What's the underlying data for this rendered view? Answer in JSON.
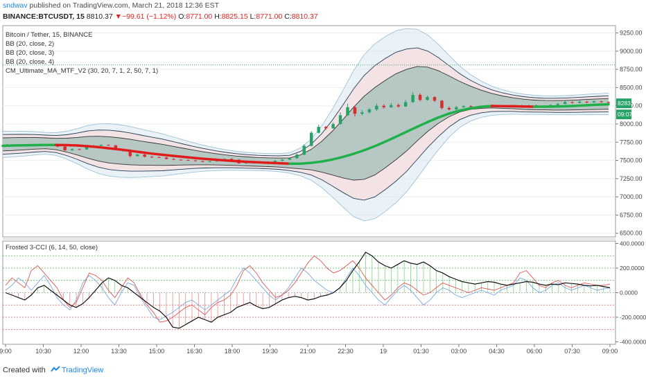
{
  "header": {
    "user": "sndwav",
    "published": "published on TradingView.com, March 21, 2018 12:36 EST",
    "symbol": "BINANCE:BTCUSDT, 15",
    "last": "8810.37",
    "change_arrow": "▼",
    "change": "−99.61 (−1.12%)",
    "o_label": "O:",
    "o": "8771.00",
    "h_label": "H:",
    "h": "8825.15",
    "l_label": "L:",
    "l": "8771.00",
    "c_label": "C:",
    "c": "8810.37"
  },
  "footer": {
    "created": "Created with",
    "brand": "TradingView"
  },
  "colors": {
    "up": "#26a269",
    "down": "#d32f2f",
    "ma_up": "#20b04a",
    "ma_down": "#e01b1b",
    "band_fill": "#2e8b7a",
    "band_outer": "#d8e8f0",
    "band_mid": "#f5dede",
    "cci_black": "#111111",
    "cci_red": "#e05555",
    "cci_blue": "#7aa7e0"
  },
  "chart_data": [
    {
      "type": "candlestick",
      "legend": [
        "Bitcoin / Tether, 15, BINANCE",
        "BB (20, close, 2)",
        "BB (20, close, 3)",
        "BB (20, close, 4)",
        "CM_Ultimate_MA_MTF_V2 (30, 20, 7, 1, 2, 50, 7, 1)"
      ],
      "yticks": [
        "9250.00",
        "9000.00",
        "8750.00",
        "8500.00",
        "8250.00",
        "8000.00",
        "7750.00",
        "7500.00",
        "7250.00",
        "7000.00",
        "6750.00",
        "6500.00"
      ],
      "ylim": [
        6450,
        9350
      ],
      "price_labels": [
        "8283.47",
        "09:07"
      ],
      "ref_line": 8810,
      "ma": [
        7700,
        7705,
        7708,
        7710,
        7712,
        7712,
        7710,
        7705,
        7695,
        7682,
        7666,
        7650,
        7632,
        7612,
        7594,
        7578,
        7563,
        7548,
        7534,
        7521,
        7510,
        7500,
        7490,
        7481,
        7474,
        7467,
        7461,
        7456,
        7456,
        7466,
        7484,
        7512,
        7548,
        7590,
        7640,
        7696,
        7758,
        7825,
        7894,
        7962,
        8028,
        8090,
        8143,
        8185,
        8215,
        8236,
        8247,
        8245,
        8243,
        8240,
        8238,
        8238,
        8240,
        8243,
        8250,
        8258,
        8265,
        8270
      ],
      "bb_mid": [
        7720,
        7725,
        7730,
        7735,
        7735,
        7725,
        7710,
        7695,
        7680,
        7662,
        7645,
        7630,
        7615,
        7600,
        7588,
        7576,
        7564,
        7552,
        7540,
        7528,
        7516,
        7505,
        7495,
        7486,
        7480,
        7475,
        7470,
        7465,
        7480,
        7510,
        7550,
        7600,
        7660,
        7730,
        7810,
        7900,
        8000,
        8100,
        8190,
        8280,
        8340,
        8370,
        8380,
        8375,
        8360,
        8340,
        8320,
        8300,
        8285,
        8270,
        8262,
        8258,
        8256,
        8258,
        8262,
        8268,
        8272,
        8276
      ],
      "bb_w2": [
        90,
        88,
        85,
        80,
        75,
        78,
        95,
        120,
        150,
        170,
        180,
        180,
        175,
        165,
        155,
        145,
        130,
        115,
        100,
        88,
        78,
        70,
        65,
        62,
        60,
        60,
        62,
        70,
        95,
        140,
        210,
        300,
        400,
        500,
        570,
        600,
        600,
        590,
        560,
        510,
        440,
        360,
        280,
        210,
        160,
        125,
        100,
        85,
        75,
        70,
        66,
        64,
        65,
        66,
        68,
        70,
        72,
        74
      ],
      "candles": [
        [
          7710,
          7705,
          7725,
          7690
        ],
        [
          7705,
          7700,
          7720,
          7690
        ],
        [
          7700,
          7702,
          7712,
          7690
        ],
        [
          7702,
          7720,
          7728,
          7698
        ],
        [
          7720,
          7718,
          7728,
          7710
        ],
        [
          7718,
          7722,
          7730,
          7712
        ],
        [
          7722,
          7705,
          7726,
          7700
        ],
        [
          7705,
          7690,
          7710,
          7682
        ],
        [
          7690,
          7640,
          7700,
          7630
        ],
        [
          7640,
          7655,
          7665,
          7635
        ],
        [
          7655,
          7650,
          7660,
          7642
        ],
        [
          7650,
          7690,
          7700,
          7645
        ],
        [
          7690,
          7700,
          7712,
          7685
        ],
        [
          7700,
          7712,
          7722,
          7695
        ],
        [
          7712,
          7708,
          7720,
          7700
        ],
        [
          7708,
          7655,
          7712,
          7650
        ],
        [
          7655,
          7640,
          7660,
          7620
        ],
        [
          7640,
          7560,
          7650,
          7540
        ],
        [
          7560,
          7580,
          7592,
          7552
        ],
        [
          7580,
          7550,
          7590,
          7540
        ],
        [
          7550,
          7545,
          7560,
          7535
        ],
        [
          7545,
          7540,
          7552,
          7532
        ],
        [
          7540,
          7520,
          7548,
          7515
        ],
        [
          7520,
          7510,
          7528,
          7505
        ],
        [
          7510,
          7505,
          7518,
          7500
        ],
        [
          7505,
          7500,
          7512,
          7495
        ],
        [
          7500,
          7490,
          7508,
          7485
        ],
        [
          7490,
          7480,
          7498,
          7475
        ],
        [
          7480,
          7488,
          7495,
          7475
        ],
        [
          7488,
          7500,
          7508,
          7482
        ],
        [
          7500,
          7520,
          7528,
          7495
        ],
        [
          7520,
          7510,
          7530,
          7505
        ],
        [
          7510,
          7460,
          7515,
          7455
        ],
        [
          7460,
          7470,
          7478,
          7452
        ],
        [
          7470,
          7465,
          7475,
          7458
        ],
        [
          7465,
          7470,
          7478,
          7460
        ],
        [
          7470,
          7480,
          7488,
          7465
        ],
        [
          7480,
          7495,
          7502,
          7475
        ],
        [
          7495,
          7510,
          7518,
          7490
        ],
        [
          7510,
          7530,
          7540,
          7505
        ],
        [
          7530,
          7580,
          7590,
          7525
        ],
        [
          7580,
          7700,
          7720,
          7570
        ],
        [
          7700,
          7880,
          7900,
          7690
        ],
        [
          7880,
          7960,
          7990,
          7870
        ],
        [
          7960,
          7940,
          7975,
          7920
        ],
        [
          7940,
          8000,
          8020,
          7935
        ],
        [
          8000,
          8120,
          8160,
          7990
        ],
        [
          8120,
          8230,
          8280,
          8110
        ],
        [
          8230,
          8140,
          8250,
          8100
        ],
        [
          8140,
          8160,
          8190,
          8120
        ],
        [
          8160,
          8200,
          8220,
          8140
        ],
        [
          8200,
          8250,
          8280,
          8180
        ],
        [
          8250,
          8230,
          8270,
          8210
        ],
        [
          8230,
          8260,
          8290,
          8220
        ],
        [
          8260,
          8240,
          8280,
          8225
        ],
        [
          8240,
          8300,
          8330,
          8235
        ],
        [
          8300,
          8400,
          8440,
          8290
        ],
        [
          8400,
          8330,
          8420,
          8310
        ],
        [
          8330,
          8370,
          8390,
          8320
        ],
        [
          8370,
          8320,
          8380,
          8300
        ],
        [
          8320,
          8220,
          8330,
          8200
        ],
        [
          8220,
          8200,
          8240,
          8185
        ],
        [
          8200,
          8230,
          8250,
          8190
        ],
        [
          8230,
          8245,
          8260,
          8225
        ],
        [
          8245,
          8240,
          8258,
          8230
        ],
        [
          8240,
          8235,
          8250,
          8225
        ],
        [
          8235,
          8245,
          8258,
          8228
        ],
        [
          8245,
          8250,
          8265,
          8238
        ],
        [
          8250,
          8240,
          8262,
          8232
        ],
        [
          8240,
          8238,
          8255,
          8228
        ],
        [
          8238,
          8250,
          8262,
          8230
        ],
        [
          8250,
          8245,
          8262,
          8235
        ],
        [
          8245,
          8255,
          8268,
          8240
        ],
        [
          8255,
          8240,
          8265,
          8232
        ],
        [
          8240,
          8245,
          8258,
          8230
        ],
        [
          8245,
          8260,
          8272,
          8240
        ],
        [
          8260,
          8275,
          8290,
          8255
        ],
        [
          8275,
          8300,
          8320,
          8270
        ],
        [
          8300,
          8290,
          8312,
          8280
        ],
        [
          8290,
          8305,
          8322,
          8285
        ],
        [
          8305,
          8295,
          8318,
          8285
        ],
        [
          8295,
          8310,
          8325,
          8290
        ],
        [
          8310,
          8300,
          8320,
          8292
        ],
        [
          8300,
          8290,
          8310,
          8280
        ]
      ]
    },
    {
      "type": "line",
      "legend": [
        "Frosted 3-CCI (6, 14, 50, close)"
      ],
      "yticks": [
        "400.0000",
        "200.0000",
        "0.0000",
        "-200.0000",
        "-400.0000"
      ],
      "ylim": [
        -420,
        420
      ],
      "hlines_green": [
        300,
        200,
        100
      ],
      "hlines_red": [
        -100,
        -200,
        -300
      ],
      "xticks": [
        "9:00",
        "10:30",
        "12:00",
        "13:30",
        "15:00",
        "16:30",
        "18:00",
        "19:30",
        "21:00",
        "22:30",
        "19",
        "01:30",
        "03:00",
        "04:30",
        "06:00",
        "07:30",
        "09:00"
      ],
      "series": [
        {
          "values": [
            0,
            -20,
            -40,
            -60,
            -20,
            40,
            60,
            20,
            -20,
            -60,
            -100,
            -120,
            -90,
            -40,
            20,
            80,
            120,
            100,
            60,
            40,
            0,
            -40,
            -80,
            -120,
            -150,
            -200,
            -280,
            -290,
            -260,
            -230,
            -200,
            -220,
            -240,
            -200,
            -180,
            -160,
            -120,
            -100,
            -80,
            -110,
            -130,
            -120,
            -90,
            -60,
            -40,
            -30,
            -40,
            -60,
            -50,
            -30,
            -20,
            0,
            40,
            100,
            180,
            250,
            330,
            300,
            250,
            220,
            200,
            230,
            260,
            240,
            230,
            250,
            220,
            180,
            160,
            130,
            110,
            90,
            80,
            70,
            80,
            90,
            85,
            70,
            60,
            70,
            80,
            90,
            85,
            70,
            60,
            70,
            65,
            80,
            75,
            70,
            60,
            55,
            60,
            50,
            40
          ]
        },
        {
          "values": [
            60,
            120,
            80,
            40,
            180,
            220,
            160,
            100,
            40,
            -60,
            -120,
            -80,
            40,
            160,
            140,
            100,
            20,
            -40,
            40,
            120,
            80,
            -20,
            -100,
            -160,
            -240,
            -230,
            -200,
            -160,
            -120,
            -100,
            -140,
            -180,
            -120,
            -80,
            -60,
            -20,
            60,
            180,
            220,
            160,
            80,
            20,
            -40,
            -20,
            20,
            80,
            160,
            240,
            300,
            260,
            200,
            160,
            180,
            220,
            260,
            200,
            120,
            60,
            0,
            -60,
            -20,
            40,
            80,
            60,
            20,
            -20,
            0,
            40,
            80,
            60,
            40,
            20,
            0,
            20,
            40,
            30,
            20,
            40,
            60,
            80,
            160,
            180,
            120,
            60,
            40,
            80,
            100,
            60,
            40,
            60,
            80,
            70,
            60,
            60,
            70
          ]
        },
        {
          "values": [
            20,
            60,
            120,
            80,
            20,
            80,
            140,
            60,
            -40,
            -100,
            -140,
            -60,
            80,
            140,
            100,
            40,
            -40,
            -100,
            0,
            80,
            60,
            -40,
            -120,
            -200,
            -220,
            -190,
            -160,
            -120,
            -80,
            -60,
            -100,
            -140,
            -100,
            -60,
            -20,
            20,
            120,
            200,
            160,
            100,
            40,
            -20,
            -60,
            -20,
            40,
            120,
            200,
            160,
            100,
            60,
            20,
            0,
            40,
            120,
            200,
            140,
            60,
            0,
            -60,
            -100,
            -40,
            20,
            60,
            20,
            -40,
            -100,
            -60,
            0,
            40,
            20,
            -20,
            -40,
            -20,
            0,
            20,
            0,
            -20,
            20,
            40,
            60,
            120,
            100,
            40,
            0,
            20,
            60,
            80,
            40,
            20,
            40,
            60,
            40,
            20,
            30,
            40
          ]
        }
      ]
    }
  ]
}
